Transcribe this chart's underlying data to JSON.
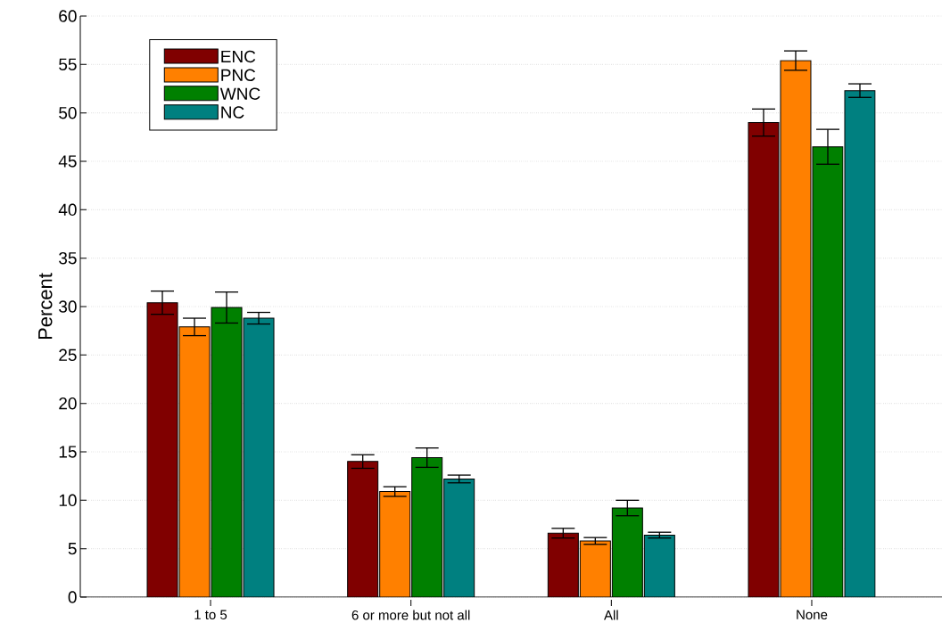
{
  "chart_data": {
    "type": "bar",
    "ylabel": "Percent",
    "categories": [
      "1 to 5",
      "6 or more but not all",
      "All",
      "None"
    ],
    "series": [
      {
        "name": "ENC",
        "color": "#800000",
        "values": [
          30.4,
          14.0,
          6.6,
          49.0
        ],
        "errors": [
          1.2,
          0.7,
          0.5,
          1.4
        ]
      },
      {
        "name": "PNC",
        "color": "#ff8000",
        "values": [
          27.9,
          10.9,
          5.8,
          55.4
        ],
        "errors": [
          0.9,
          0.5,
          0.35,
          1.0
        ]
      },
      {
        "name": "WNC",
        "color": "#008000",
        "values": [
          29.9,
          14.4,
          9.2,
          46.5
        ],
        "errors": [
          1.6,
          1.0,
          0.8,
          1.8
        ]
      },
      {
        "name": "NC",
        "color": "#008080",
        "values": [
          28.8,
          12.2,
          6.4,
          52.3
        ],
        "errors": [
          0.6,
          0.4,
          0.3,
          0.7
        ]
      }
    ],
    "ylim": [
      0,
      60
    ],
    "yticks": [
      0,
      5,
      10,
      15,
      20,
      25,
      30,
      35,
      40,
      45,
      50,
      55,
      60
    ],
    "grid": "y",
    "legend": "top left"
  }
}
